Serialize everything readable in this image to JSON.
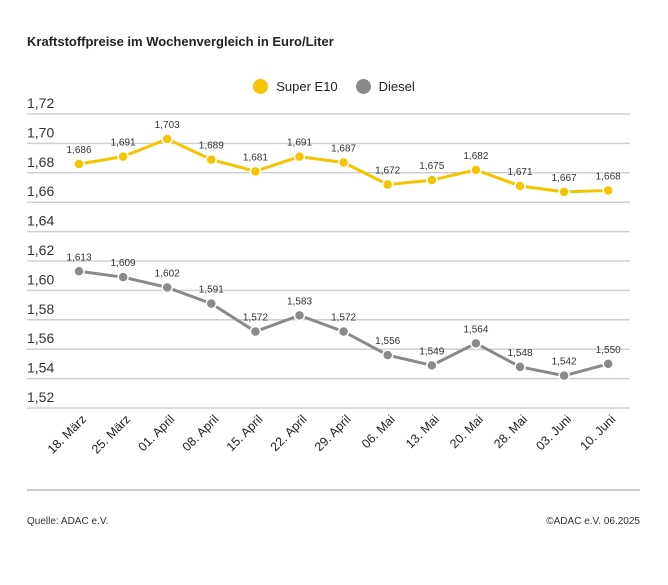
{
  "chart_data": {
    "type": "line",
    "title": "Kraftstoffpreise im Wochenvergleich in Euro/Liter",
    "categories": [
      "18. März",
      "25. März",
      "01. April",
      "08. April",
      "15. April",
      "22. April",
      "29. April",
      "06. Mai",
      "13. Mai",
      "20. Mai",
      "28. Mai",
      "03. Juni",
      "10. Juni"
    ],
    "series": [
      {
        "name": "Super E10",
        "color": "#f5c400",
        "values": [
          1.686,
          1.691,
          1.703,
          1.689,
          1.681,
          1.691,
          1.687,
          1.672,
          1.675,
          1.682,
          1.671,
          1.667,
          1.668
        ],
        "labels": [
          "1,686",
          "1,691",
          "1,703",
          "1,689",
          "1,681",
          "1,691",
          "1,687",
          "1,672",
          "1,675",
          "1,682",
          "1,671",
          "1,667",
          "1,668"
        ]
      },
      {
        "name": "Diesel",
        "color": "#8a8a8a",
        "values": [
          1.613,
          1.609,
          1.602,
          1.591,
          1.572,
          1.583,
          1.572,
          1.556,
          1.549,
          1.564,
          1.548,
          1.542,
          1.55
        ],
        "labels": [
          "1,613",
          "1,609",
          "1,602",
          "1,591",
          "1,572",
          "1,583",
          "1,572",
          "1,556",
          "1,549",
          "1,564",
          "1,548",
          "1,542",
          "1,550"
        ]
      }
    ],
    "yticks": [
      1.72,
      1.7,
      1.68,
      1.66,
      1.64,
      1.62,
      1.6,
      1.58,
      1.56,
      1.54,
      1.52
    ],
    "ytick_labels": [
      "1,72",
      "1,70",
      "1,68",
      "1,66",
      "1,64",
      "1,62",
      "1,60",
      "1,58",
      "1,56",
      "1,54",
      "1,52"
    ],
    "ylim": [
      1.52,
      1.72
    ],
    "grid": true,
    "legend_position": "top-center",
    "xlabel": "",
    "ylabel": ""
  },
  "footer": {
    "source": "Quelle: ADAC e.V.",
    "copyright": "©ADAC e.V. 06.2025"
  }
}
